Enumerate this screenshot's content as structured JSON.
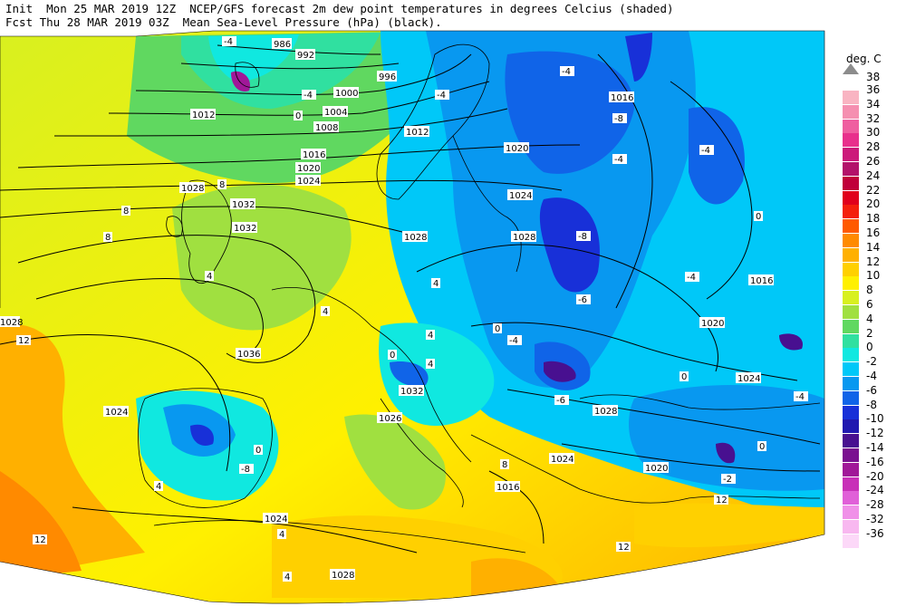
{
  "header": {
    "line1": "Init  Mon 25 MAR 2019 12Z  NCEP/GFS forecast 2m dew point temperatures in degrees Celcius (shaded)",
    "line2": "Fcst Thu 28 MAR 2019 03Z  Mean Sea-Level Pressure (hPa) (black)."
  },
  "legend": {
    "unit": "deg. C",
    "top_label": "38",
    "entries": [
      {
        "label": "36",
        "color": "#f9b4c2"
      },
      {
        "label": "34",
        "color": "#f58fb0"
      },
      {
        "label": "32",
        "color": "#ef5fa0"
      },
      {
        "label": "30",
        "color": "#e8308c"
      },
      {
        "label": "28",
        "color": "#cc1a7a"
      },
      {
        "label": "26",
        "color": "#b3126a"
      },
      {
        "label": "24",
        "color": "#c0003a"
      },
      {
        "label": "22",
        "color": "#e0001c"
      },
      {
        "label": "20",
        "color": "#f4200c"
      },
      {
        "label": "18",
        "color": "#ff5a00"
      },
      {
        "label": "16",
        "color": "#ff8a00"
      },
      {
        "label": "14",
        "color": "#ffb000"
      },
      {
        "label": "12",
        "color": "#ffd000"
      },
      {
        "label": "10",
        "color": "#fff000"
      },
      {
        "label": "8",
        "color": "#d8f020"
      },
      {
        "label": "6",
        "color": "#a0e040"
      },
      {
        "label": "4",
        "color": "#60d860"
      },
      {
        "label": "2",
        "color": "#30e0a0"
      },
      {
        "label": "0",
        "color": "#10e8e0"
      },
      {
        "label": "-2",
        "color": "#00c8f8"
      },
      {
        "label": "-4",
        "color": "#0898f0"
      },
      {
        "label": "-6",
        "color": "#1064e8"
      },
      {
        "label": "-8",
        "color": "#1830d8"
      },
      {
        "label": "-10",
        "color": "#2018b0"
      },
      {
        "label": "-12",
        "color": "#481090"
      },
      {
        "label": "-14",
        "color": "#7a1090"
      },
      {
        "label": "-16",
        "color": "#a01898"
      },
      {
        "label": "-20",
        "color": "#c830b8"
      },
      {
        "label": "-24",
        "color": "#e060d8"
      },
      {
        "label": "-28",
        "color": "#f090e8"
      },
      {
        "label": "-32",
        "color": "#f8b8f0"
      },
      {
        "label": "-36",
        "color": "#fcd8f8"
      }
    ]
  },
  "isobar_labels": [
    "986",
    "992",
    "996",
    "1000",
    "1004",
    "1008",
    "1012",
    "1012",
    "1016",
    "1016",
    "1020",
    "1020",
    "1024",
    "1024",
    "1028",
    "1028",
    "1028",
    "1028",
    "1032",
    "1032",
    "1032",
    "1036",
    "1024",
    "1024",
    "1026",
    "1028",
    "1024",
    "1020",
    "1016",
    "1024",
    "1020",
    "1016",
    "1028"
  ],
  "dewpoint_labels": [
    "-4",
    "-4",
    "0",
    "-4",
    "-8",
    "-4",
    "-4",
    "0",
    "-8",
    "-6",
    "-4",
    "-4",
    "8",
    "8",
    "8",
    "4",
    "4",
    "4",
    "0",
    "4",
    "0",
    "-4",
    "0",
    "12",
    "12",
    "12",
    "4",
    "4",
    "0",
    "-4",
    "-2",
    "4",
    "8",
    "12",
    "4",
    "0",
    "-6",
    "-8"
  ]
}
